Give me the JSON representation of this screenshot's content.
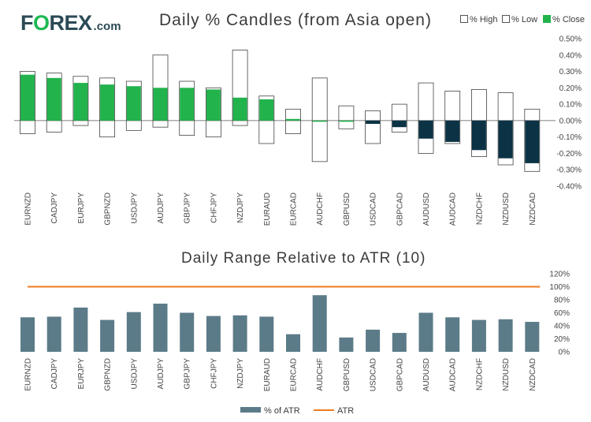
{
  "header": {
    "logo_part1": "F",
    "logo_o": "O",
    "logo_part2": "REX",
    "logo_suffix": ".com",
    "title": "Daily % Candles (from Asia open)"
  },
  "legend_top": {
    "high": "% High",
    "low": "% Low",
    "close": "% Close"
  },
  "colors": {
    "up_close": "#22b34c",
    "down_close": "#0b3345",
    "box_border": "#444444",
    "bar": "#5c7b88",
    "atr_line": "#ee7b22",
    "axis_text": "#444444"
  },
  "chart_data": [
    {
      "type": "candle",
      "title": "Daily % Candles (from Asia open)",
      "categories": [
        "EURNZD",
        "CADJPY",
        "EURJPY",
        "GBPNZD",
        "USDJPY",
        "AUDJPY",
        "GBPJPY",
        "CHFJPY",
        "NZDJPY",
        "EURAUD",
        "EURCAD",
        "AUDCHF",
        "GBPUSD",
        "USDCAD",
        "GBPCAD",
        "AUDUSD",
        "AUDCAD",
        "NZDCHF",
        "NZDUSD",
        "NZDCAD"
      ],
      "high": [
        0.3,
        0.29,
        0.27,
        0.26,
        0.24,
        0.4,
        0.24,
        0.2,
        0.43,
        0.15,
        0.07,
        0.26,
        0.09,
        0.06,
        0.1,
        0.23,
        0.18,
        0.19,
        0.17,
        0.07
      ],
      "low": [
        -0.08,
        -0.07,
        -0.03,
        -0.1,
        -0.06,
        -0.04,
        -0.09,
        -0.1,
        -0.03,
        -0.14,
        -0.08,
        -0.25,
        -0.05,
        -0.14,
        -0.07,
        -0.2,
        -0.14,
        -0.22,
        -0.27,
        -0.31
      ],
      "close": [
        0.28,
        0.26,
        0.23,
        0.22,
        0.21,
        0.2,
        0.2,
        0.19,
        0.14,
        0.13,
        0.01,
        0.0,
        0.0,
        -0.02,
        -0.04,
        -0.11,
        -0.13,
        -0.18,
        -0.23,
        -0.26
      ],
      "ylim": [
        -0.4,
        0.5
      ],
      "yticks": [
        "0.50%",
        "0.40%",
        "0.30%",
        "0.20%",
        "0.10%",
        "0.00%",
        "-0.10%",
        "-0.20%",
        "-0.30%",
        "-0.40%"
      ],
      "legend": [
        "% High",
        "% Low",
        "% Close"
      ]
    },
    {
      "type": "bar",
      "title": "Daily Range Relative to ATR (10)",
      "categories": [
        "EURNZD",
        "CADJPY",
        "EURJPY",
        "GBPNZD",
        "USDJPY",
        "AUDJPY",
        "GBPJPY",
        "CHFJPY",
        "NZDJPY",
        "EURAUD",
        "EURCAD",
        "AUDCHF",
        "GBPUSD",
        "USDCAD",
        "GBPCAD",
        "AUDUSD",
        "AUDCAD",
        "NZDCHF",
        "NZDUSD",
        "NZDCAD"
      ],
      "series": [
        {
          "name": "% of ATR",
          "values": [
            53,
            54,
            68,
            49,
            61,
            74,
            60,
            55,
            56,
            54,
            27,
            87,
            22,
            34,
            29,
            60,
            53,
            49,
            50,
            46
          ]
        },
        {
          "name": "ATR",
          "values": [
            100,
            100,
            100,
            100,
            100,
            100,
            100,
            100,
            100,
            100,
            100,
            100,
            100,
            100,
            100,
            100,
            100,
            100,
            100,
            100
          ]
        }
      ],
      "ylim": [
        0,
        120
      ],
      "yticks": [
        "120%",
        "100%",
        "80%",
        "60%",
        "40%",
        "20%",
        "0%"
      ],
      "legend": [
        "% of ATR",
        "ATR"
      ]
    }
  ]
}
